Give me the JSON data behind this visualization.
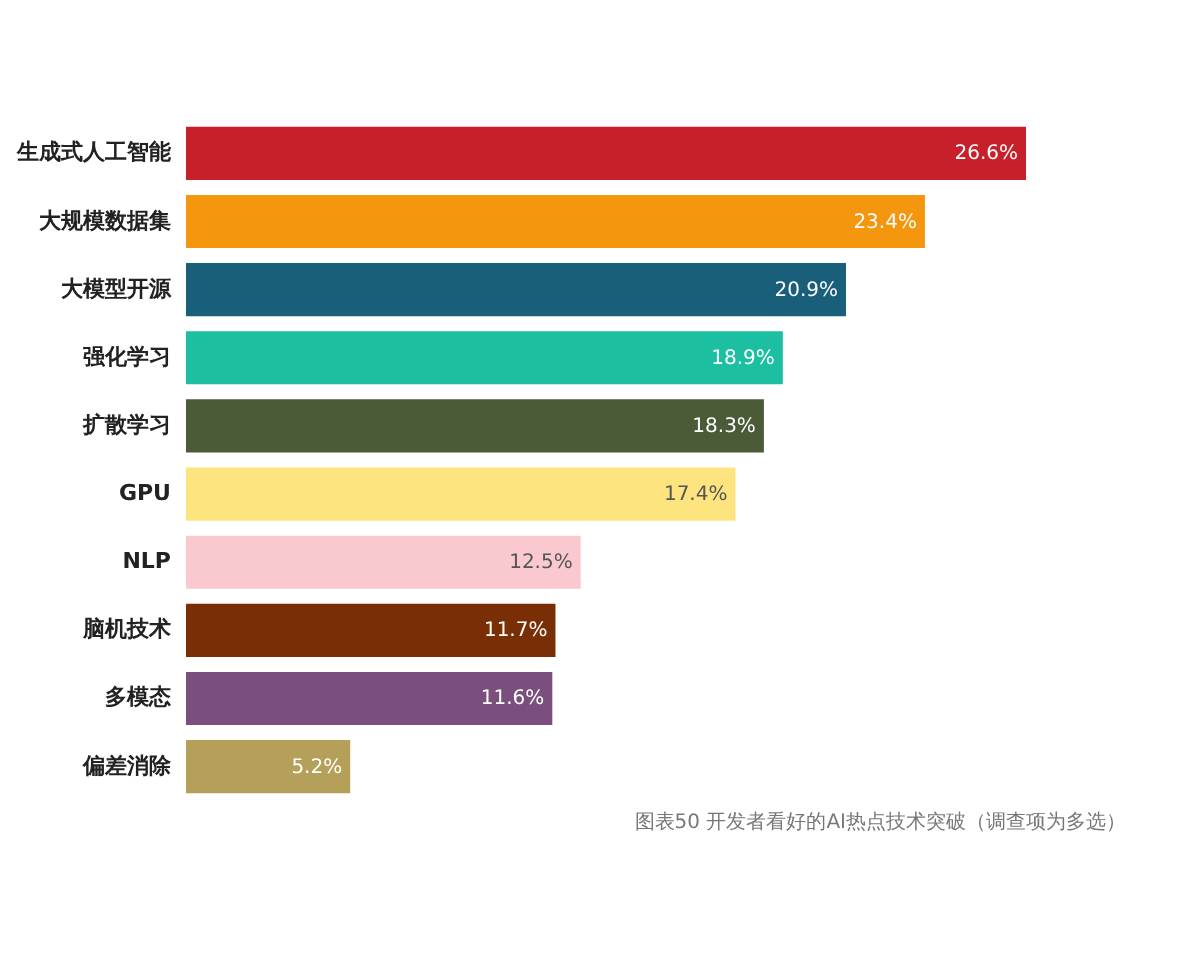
{
  "chart_data": {
    "type": "bar",
    "orientation": "horizontal",
    "data_labels": true,
    "categories": [
      "生成式人工智能",
      "大规模数据集",
      "大模型开源",
      "强化学习",
      "扩散学习",
      "GPU",
      "NLP",
      "脑机技术",
      "多模态",
      "偏差消除"
    ],
    "values": [
      26.6,
      23.4,
      20.9,
      18.9,
      18.3,
      17.4,
      12.5,
      11.7,
      11.6,
      5.2
    ],
    "colors": [
      "#c8202a",
      "#f5960f",
      "#1a5f7a",
      "#1dbfa3",
      "#4b5a37",
      "#fde47f",
      "#f9c9cf",
      "#7a2e05",
      "#7a4f7d",
      "#b5a05a"
    ],
    "value_labels": [
      "26.6%",
      "23.4%",
      "20.9%",
      "18.9%",
      "18.3%",
      "17.4%",
      "12.5%",
      "11.7%",
      "11.6%",
      "5.2%"
    ],
    "annotations": [
      "图表50 开发者看好的AI热点技术突破（调查项为多选）"
    ]
  }
}
